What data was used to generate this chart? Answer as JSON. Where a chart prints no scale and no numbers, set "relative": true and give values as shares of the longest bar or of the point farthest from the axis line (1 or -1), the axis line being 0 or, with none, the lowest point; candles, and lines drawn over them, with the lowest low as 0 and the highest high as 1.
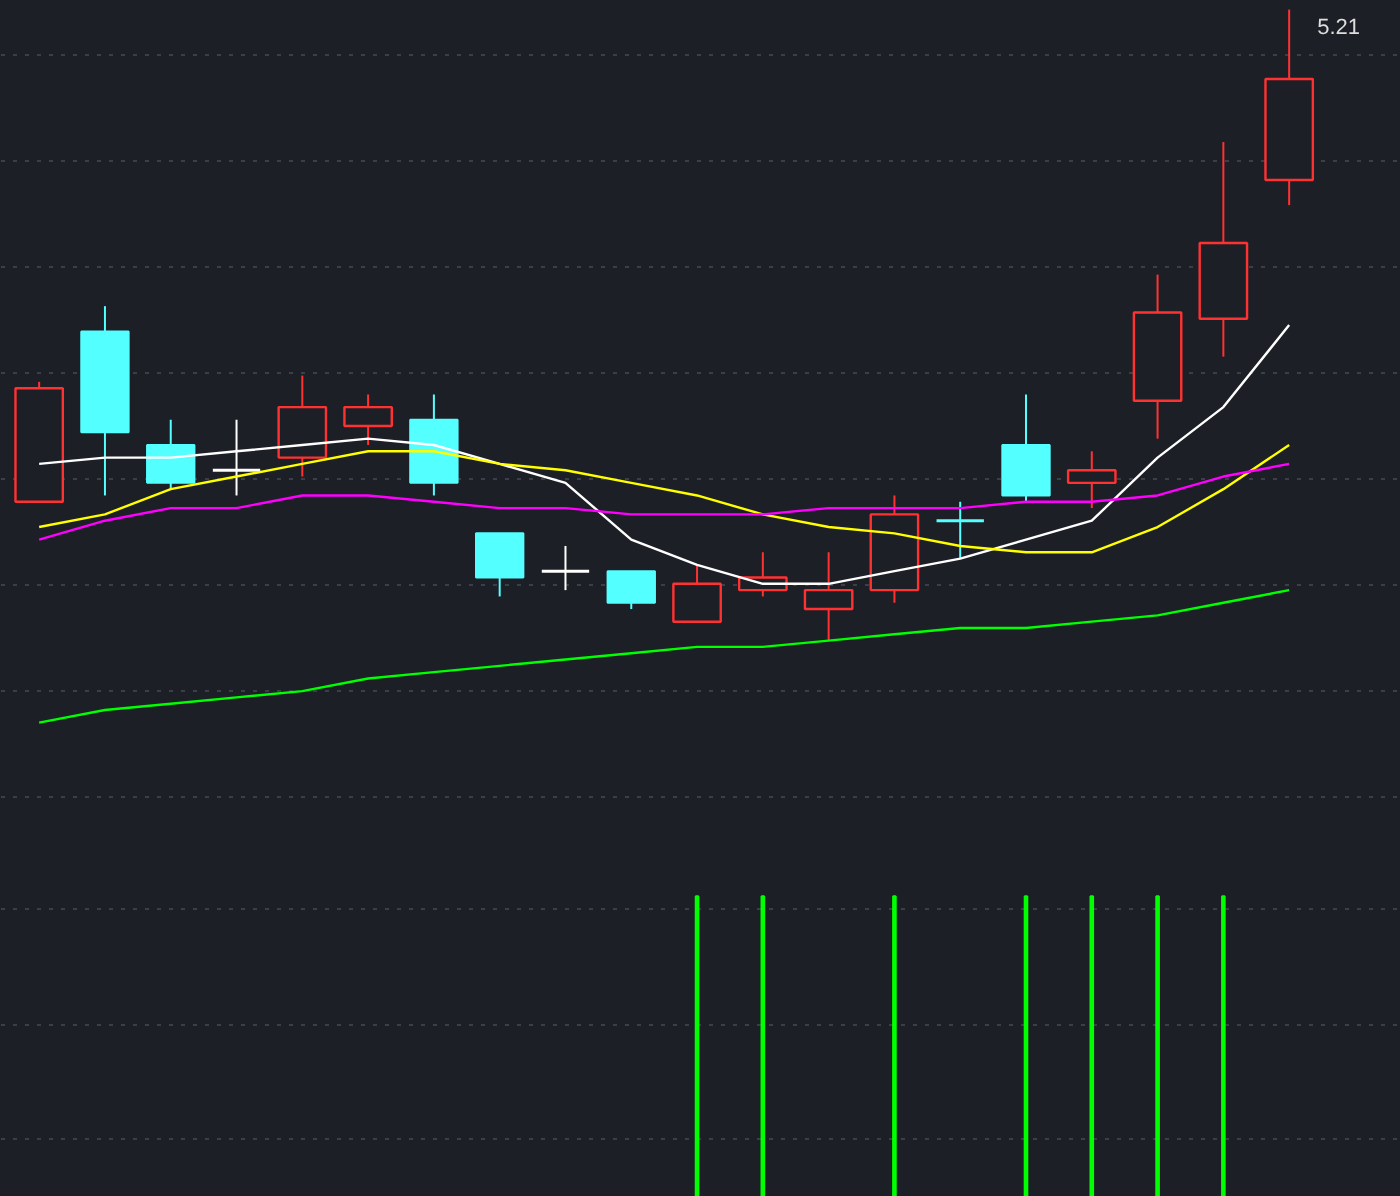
{
  "chart_data": [
    {
      "type": "candlestick",
      "relative": true,
      "grid": true,
      "categories": [
        null,
        null,
        null,
        null,
        null,
        null,
        null,
        null,
        null,
        null,
        null,
        null,
        null,
        null,
        null,
        null,
        null,
        null,
        null,
        null
      ],
      "ohlc": [
        [
          0.22,
          0.41,
          0.22,
          0.4
        ],
        [
          0.49,
          0.53,
          0.23,
          0.33
        ],
        [
          0.31,
          0.35,
          0.24,
          0.25
        ],
        [
          0.27,
          0.35,
          0.23,
          0.27
        ],
        [
          0.29,
          0.42,
          0.26,
          0.37
        ],
        [
          0.34,
          0.39,
          0.31,
          0.37
        ],
        [
          0.35,
          0.39,
          0.23,
          0.25
        ],
        [
          0.17,
          0.17,
          0.07,
          0.1
        ],
        [
          0.11,
          0.15,
          0.08,
          0.11
        ],
        [
          0.11,
          0.11,
          0.05,
          0.06
        ],
        [
          0.03,
          0.12,
          0.03,
          0.09
        ],
        [
          0.08,
          0.14,
          0.07,
          0.1
        ],
        [
          0.05,
          0.14,
          0,
          0.08
        ],
        [
          0.08,
          0.23,
          0.06,
          0.2
        ],
        [
          0.19,
          0.22,
          0.13,
          0.19
        ],
        [
          0.31,
          0.39,
          0.22,
          0.23
        ],
        [
          0.25,
          0.3,
          0.21,
          0.27
        ],
        [
          0.38,
          0.58,
          0.32,
          0.52
        ],
        [
          0.51,
          0.79,
          0.45,
          0.63
        ],
        [
          0.73,
          1,
          0.69,
          0.89
        ]
      ],
      "colors": [
        "#ff3232",
        "#54ffff",
        "#54ffff",
        "#ffffff",
        "#ff3232",
        "#ff3232",
        "#54ffff",
        "#54ffff",
        "#ffffff",
        "#54ffff",
        "#ff3232",
        "#ff3232",
        "#ff3232",
        "#ff3232",
        "#54ffff",
        "#54ffff",
        "#ff3232",
        "#ff3232",
        "#ff3232",
        "#ff3232"
      ],
      "series": [
        {
          "type": "line",
          "color": "#ffffff",
          "values": [
            0.28,
            0.29,
            0.29,
            0.3,
            0.31,
            0.32,
            0.31,
            0.28,
            0.25,
            0.16,
            0.12,
            0.09,
            0.09,
            0.11,
            0.13,
            0.16,
            0.19,
            0.29,
            0.37,
            0.5
          ]
        },
        {
          "type": "line",
          "color": "#ffff00",
          "values": [
            0.18,
            0.2,
            0.24,
            0.26,
            0.28,
            0.3,
            0.3,
            0.28,
            0.27,
            0.25,
            0.23,
            0.2,
            0.18,
            0.17,
            0.15,
            0.14,
            0.14,
            0.18,
            0.24,
            0.31
          ]
        },
        {
          "type": "line",
          "color": "#ff00ff",
          "values": [
            0.16,
            0.19,
            0.21,
            0.21,
            0.23,
            0.23,
            0.22,
            0.21,
            0.21,
            0.2,
            0.2,
            0.2,
            0.21,
            0.21,
            0.21,
            0.22,
            0.22,
            0.23,
            0.26,
            0.28
          ]
        },
        {
          "type": "line",
          "color": "#00ff00",
          "values": [
            -0.13,
            -0.11,
            -0.1,
            -0.09,
            -0.08,
            -0.06,
            -0.05,
            -0.04,
            -0.03,
            -0.02,
            -0.01,
            -0.01,
            0,
            0.01,
            0.02,
            0.02,
            0.03,
            0.04,
            0.06,
            0.08
          ]
        }
      ],
      "annotations": [
        "5.21"
      ]
    },
    {
      "type": "bar",
      "relative": true,
      "grid": true,
      "categories": [
        null,
        null,
        null,
        null,
        null,
        null,
        null,
        null,
        null,
        null,
        null,
        null,
        null,
        null,
        null,
        null,
        null,
        null,
        null,
        null
      ],
      "values": [
        null,
        null,
        null,
        null,
        null,
        null,
        null,
        null,
        null,
        null,
        1,
        1,
        null,
        1,
        null,
        1,
        1,
        1,
        1,
        null
      ],
      "colors": [
        "#00ff00",
        "#00ff00",
        "#00ff00",
        "#00ff00",
        "#00ff00",
        "#00ff00",
        "#00ff00",
        "#00ff00",
        "#00ff00",
        "#00ff00",
        "#00ff00",
        "#00ff00",
        "#00ff00",
        "#00ff00",
        "#00ff00",
        "#00ff00",
        "#00ff00",
        "#00ff00",
        "#00ff00",
        "#00ff00"
      ]
    }
  ]
}
